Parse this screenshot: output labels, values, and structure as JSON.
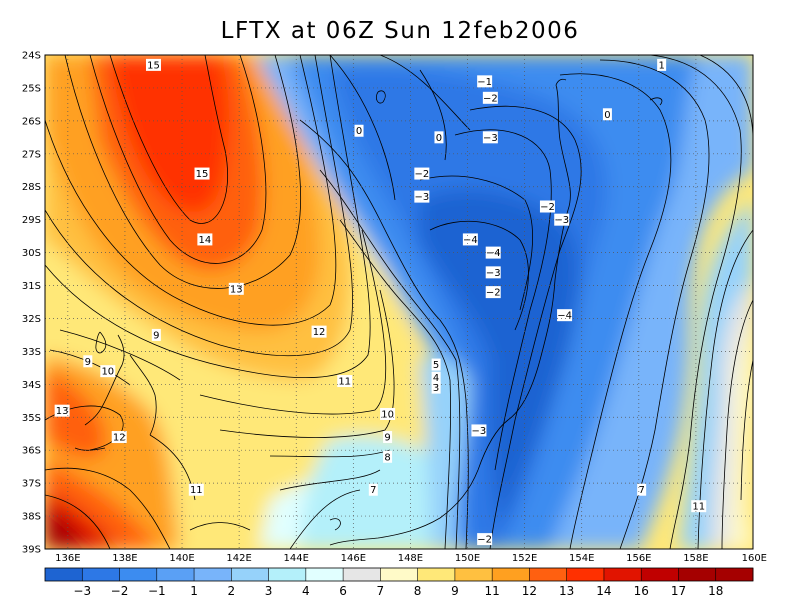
{
  "title": "LFTX at 06Z Sun 12feb2006",
  "axes": {
    "lat_ticks": [
      "24S",
      "25S",
      "26S",
      "27S",
      "28S",
      "29S",
      "30S",
      "31S",
      "32S",
      "33S",
      "34S",
      "35S",
      "36S",
      "37S",
      "38S",
      "39S"
    ],
    "lon_ticks": [
      "136E",
      "138E",
      "140E",
      "142E",
      "144E",
      "146E",
      "148E",
      "150E",
      "152E",
      "154E",
      "156E",
      "158E",
      "160E"
    ],
    "lat_range": [
      -39,
      -24
    ],
    "lon_range": [
      135.2,
      160
    ],
    "grid": "dotted"
  },
  "colorbar": {
    "labels": [
      "−3",
      "−2",
      "−1",
      "1",
      "2",
      "3",
      "4",
      "6",
      "7",
      "8",
      "9",
      "11",
      "12",
      "13",
      "14",
      "16",
      "17",
      "18"
    ],
    "colors": [
      "#1e64d2",
      "#2d78e6",
      "#3c8cf0",
      "#5aa0f5",
      "#78b4fa",
      "#96d2fa",
      "#b4f0fa",
      "#e1ffff",
      "#e6e6e6",
      "#fffac8",
      "#ffe878",
      "#ffc040",
      "#ffa020",
      "#ff6010",
      "#ff3000",
      "#e11400",
      "#c00000",
      "#a50000"
    ]
  },
  "chart_data": {
    "type": "contour-map",
    "variable": "LFTX",
    "contour_labels": [
      {
        "text": "15",
        "lon": 139.0,
        "lat": -24.3
      },
      {
        "text": "15",
        "lon": 140.7,
        "lat": -27.6
      },
      {
        "text": "14",
        "lon": 140.8,
        "lat": -29.6
      },
      {
        "text": "13",
        "lon": 141.9,
        "lat": -31.1
      },
      {
        "text": "12",
        "lon": 144.8,
        "lat": -32.4
      },
      {
        "text": "11",
        "lon": 145.7,
        "lat": -33.9
      },
      {
        "text": "10",
        "lon": 147.2,
        "lat": -34.9
      },
      {
        "text": "9",
        "lon": 147.2,
        "lat": -35.6
      },
      {
        "text": "8",
        "lon": 147.2,
        "lat": -36.2
      },
      {
        "text": "7",
        "lon": 146.7,
        "lat": -37.2
      },
      {
        "text": "9",
        "lon": 139.1,
        "lat": -32.5
      },
      {
        "text": "9",
        "lon": 136.7,
        "lat": -33.3
      },
      {
        "text": "10",
        "lon": 137.4,
        "lat": -33.6
      },
      {
        "text": "13",
        "lon": 135.8,
        "lat": -34.8
      },
      {
        "text": "12",
        "lon": 137.8,
        "lat": -35.6
      },
      {
        "text": "11",
        "lon": 140.5,
        "lat": -37.2
      },
      {
        "text": "0",
        "lon": 146.2,
        "lat": -26.3
      },
      {
        "text": "0",
        "lon": 149.0,
        "lat": -26.5
      },
      {
        "text": "0",
        "lon": 154.9,
        "lat": -25.8
      },
      {
        "text": "1",
        "lon": 156.8,
        "lat": -24.3
      },
      {
        "text": "−1",
        "lon": 150.6,
        "lat": -24.8
      },
      {
        "text": "−2",
        "lon": 150.8,
        "lat": -25.3
      },
      {
        "text": "−3",
        "lon": 150.8,
        "lat": -26.5
      },
      {
        "text": "−2",
        "lon": 148.4,
        "lat": -27.6
      },
      {
        "text": "−3",
        "lon": 148.4,
        "lat": -28.3
      },
      {
        "text": "−2",
        "lon": 152.8,
        "lat": -28.6
      },
      {
        "text": "−3",
        "lon": 153.3,
        "lat": -29.0
      },
      {
        "text": "−4",
        "lon": 150.1,
        "lat": -29.6
      },
      {
        "text": "−4",
        "lon": 150.9,
        "lat": -30.0
      },
      {
        "text": "−3",
        "lon": 150.9,
        "lat": -30.6
      },
      {
        "text": "−2",
        "lon": 150.9,
        "lat": -31.2
      },
      {
        "text": "−4",
        "lon": 153.4,
        "lat": -31.9
      },
      {
        "text": "5",
        "lon": 148.9,
        "lat": -33.4
      },
      {
        "text": "4",
        "lon": 148.9,
        "lat": -33.8
      },
      {
        "text": "3",
        "lon": 148.9,
        "lat": -34.1
      },
      {
        "text": "−3",
        "lon": 150.4,
        "lat": -35.4
      },
      {
        "text": "−2",
        "lon": 150.6,
        "lat": -38.7
      },
      {
        "text": "7",
        "lon": 156.1,
        "lat": -37.2
      },
      {
        "text": "11",
        "lon": 158.1,
        "lat": -37.7
      }
    ]
  }
}
